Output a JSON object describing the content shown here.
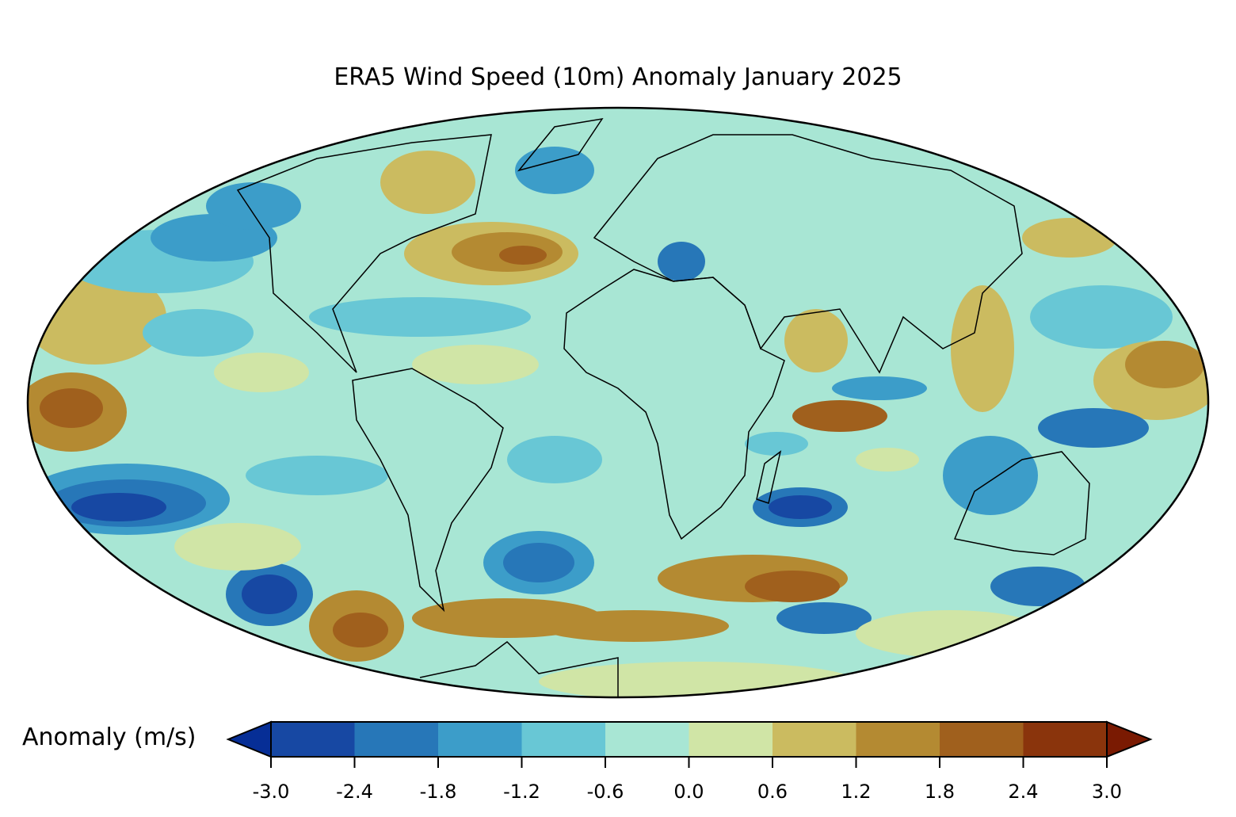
{
  "title": "ERA5 Wind Speed (10m) Anomaly January 2025",
  "colorbar": {
    "label": "Anomaly (m/s)",
    "ticks": [
      "-3.0",
      "-2.4",
      "-1.8",
      "-1.2",
      "-0.6",
      "0.0",
      "0.6",
      "1.2",
      "1.8",
      "2.4",
      "3.0"
    ],
    "levels": [
      -3.0,
      -2.4,
      -1.8,
      -1.2,
      -0.6,
      0.0,
      0.6,
      1.2,
      1.8,
      2.4,
      3.0
    ],
    "colors": [
      "#062e96",
      "#1748a3",
      "#2777b8",
      "#3c9dc9",
      "#68c7d5",
      "#a8e6d4",
      "#d0e5a6",
      "#cbbb60",
      "#b48a32",
      "#a0601d",
      "#8a340c",
      "#7a1a02"
    ],
    "extend": "both"
  },
  "map": {
    "projection": "Mollweide",
    "land_color": "#d0e5a6"
  }
}
